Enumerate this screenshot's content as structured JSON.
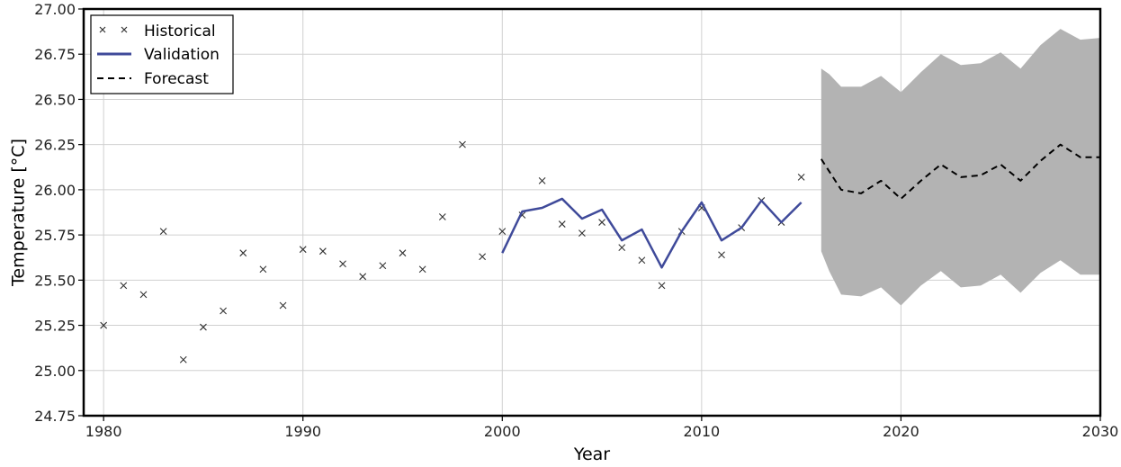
{
  "chart_data": {
    "type": "line",
    "xlabel": "Year",
    "ylabel": "Temperature [°C]",
    "xlim": [
      1979,
      2030
    ],
    "ylim": [
      24.75,
      27.0
    ],
    "xticks": [
      1980,
      1990,
      2000,
      2010,
      2020,
      2030
    ],
    "yticks": [
      "24.75",
      "25.00",
      "25.25",
      "25.50",
      "25.75",
      "26.00",
      "26.25",
      "26.50",
      "26.75",
      "27.00"
    ],
    "grid": true,
    "legend_position": "top-left",
    "legend": [
      "Historical",
      "Validation",
      "Forecast"
    ],
    "series": [
      {
        "name": "Historical",
        "style": "x-markers",
        "color": "#333333",
        "x": [
          1980,
          1981,
          1982,
          1983,
          1984,
          1985,
          1986,
          1987,
          1988,
          1989,
          1990,
          1991,
          1992,
          1993,
          1994,
          1995,
          1996,
          1997,
          1998,
          1999,
          2000,
          2001,
          2002,
          2003,
          2004,
          2005,
          2006,
          2007,
          2008,
          2009,
          2010,
          2011,
          2012,
          2013,
          2014,
          2015
        ],
        "y": [
          25.25,
          25.47,
          25.42,
          25.77,
          25.06,
          25.24,
          25.33,
          25.65,
          25.56,
          25.36,
          25.67,
          25.66,
          25.59,
          25.52,
          25.58,
          25.65,
          25.56,
          25.85,
          26.25,
          25.63,
          25.77,
          25.86,
          26.05,
          25.81,
          25.76,
          25.82,
          25.68,
          25.61,
          25.47,
          25.77,
          25.9,
          25.64,
          25.79,
          25.94,
          25.82,
          26.07
        ]
      },
      {
        "name": "Validation",
        "style": "solid-line",
        "color": "#3f4a9a",
        "x": [
          2000,
          2001,
          2002,
          2003,
          2004,
          2005,
          2006,
          2007,
          2008,
          2009,
          2010,
          2011,
          2012,
          2013,
          2014,
          2015
        ],
        "y": [
          25.65,
          25.88,
          25.9,
          25.95,
          25.84,
          25.89,
          25.72,
          25.78,
          25.57,
          25.77,
          25.93,
          25.72,
          25.79,
          25.94,
          25.82,
          25.93
        ]
      },
      {
        "name": "Forecast",
        "style": "dashed-line",
        "color": "#000000",
        "x": [
          2016,
          2017,
          2018,
          2019,
          2020,
          2021,
          2022,
          2023,
          2024,
          2025,
          2026,
          2027,
          2028,
          2029,
          2030
        ],
        "y": [
          26.17,
          26.0,
          25.98,
          26.05,
          25.95,
          26.05,
          26.14,
          26.07,
          26.08,
          26.14,
          26.05,
          26.16,
          26.25,
          26.18,
          26.18
        ]
      }
    ],
    "confidence_band": {
      "color": "#b3b3b3",
      "x": [
        2016,
        2016.4,
        2017,
        2018,
        2019,
        2020,
        2021,
        2022,
        2023,
        2024,
        2025,
        2026,
        2027,
        2028,
        2029,
        2030
      ],
      "upper": [
        26.67,
        26.64,
        26.57,
        26.57,
        26.63,
        26.54,
        26.65,
        26.75,
        26.69,
        26.7,
        26.76,
        26.67,
        26.8,
        26.89,
        26.83,
        26.84
      ],
      "lower": [
        25.66,
        25.55,
        25.42,
        25.41,
        25.46,
        25.36,
        25.47,
        25.55,
        25.46,
        25.47,
        25.53,
        25.43,
        25.54,
        25.61,
        25.53,
        25.53
      ]
    }
  }
}
